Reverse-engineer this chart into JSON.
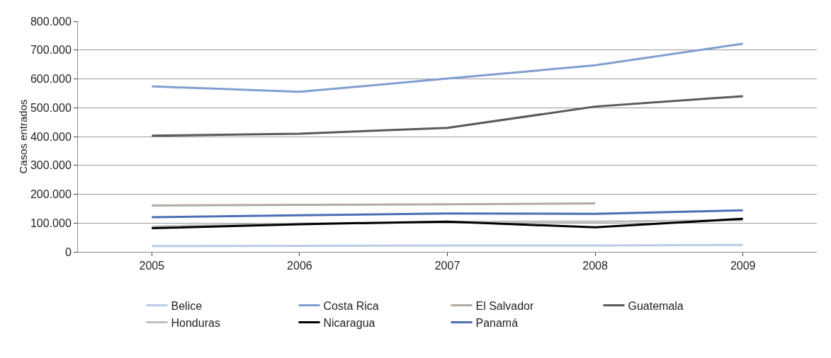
{
  "chart_data": {
    "type": "line",
    "ylabel": "Casos entrados",
    "categories": [
      "2005",
      "2006",
      "2007",
      "2008",
      "2009"
    ],
    "series": [
      {
        "name": "Belice",
        "color": "#b9cde5",
        "values": [
          20000,
          21000,
          22000,
          22000,
          24000
        ]
      },
      {
        "name": "Costa Rica",
        "color": "#7f9fcf",
        "values": [
          574000,
          555000,
          601000,
          647000,
          722000
        ]
      },
      {
        "name": "El Salvador",
        "color": "#b3aaa3",
        "values": [
          161000,
          163000,
          165000,
          168000,
          null
        ]
      },
      {
        "name": "Guatemala",
        "color": "#595959",
        "values": [
          403000,
          410000,
          430000,
          504000,
          540000
        ]
      },
      {
        "name": "Honduras",
        "color": "#bfbfbf",
        "values": [
          88000,
          98000,
          104000,
          105000,
          110000
        ]
      },
      {
        "name": "Nicaragua",
        "color": "#000000",
        "values": [
          82000,
          96000,
          105000,
          85000,
          115000
        ]
      },
      {
        "name": "Panamá",
        "color": "#4a6fb5",
        "values": [
          120000,
          127000,
          133000,
          132000,
          144000
        ]
      }
    ],
    "ylim": [
      0,
      800000
    ],
    "yticks": [
      {
        "value": 0,
        "label": "0"
      },
      {
        "value": 100000,
        "label": "100.000"
      },
      {
        "value": 200000,
        "label": "200.000"
      },
      {
        "value": 300000,
        "label": "300.000"
      },
      {
        "value": 400000,
        "label": "400.000"
      },
      {
        "value": 500000,
        "label": "500.000"
      },
      {
        "value": 600000,
        "label": "600.000"
      },
      {
        "value": 700000,
        "label": "700.000"
      },
      {
        "value": 800000,
        "label": "800.000"
      }
    ],
    "grid": "y",
    "legend": "bottom",
    "marker": "none",
    "line_style": "solid"
  }
}
